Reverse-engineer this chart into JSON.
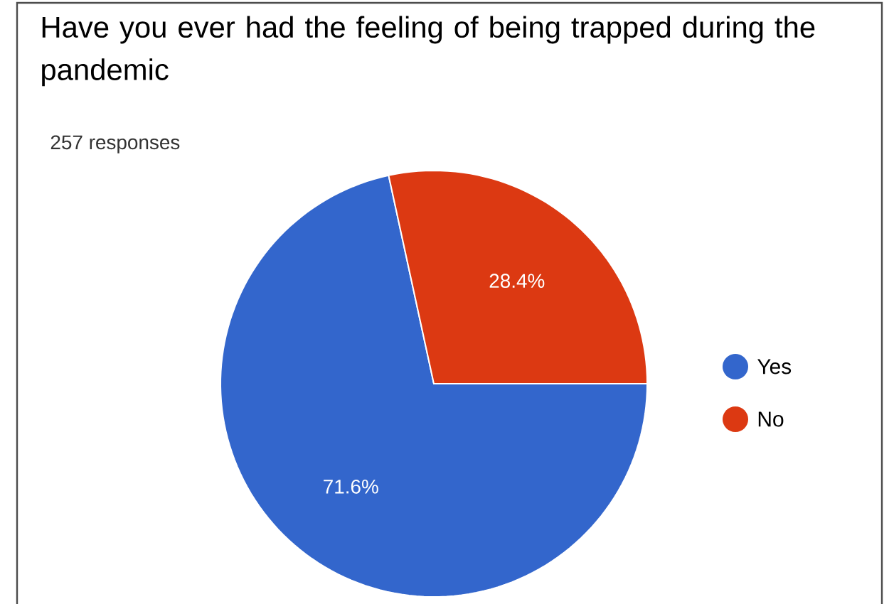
{
  "chart_data": {
    "type": "pie",
    "title": "Have you ever had the feeling of being trapped during the pandemic",
    "subtitle": "257 responses",
    "categories": [
      "Yes",
      "No"
    ],
    "values": [
      71.6,
      28.4
    ],
    "colors": [
      "#3366cc",
      "#dc3912"
    ],
    "value_labels": [
      "71.6%",
      "28.4%"
    ],
    "legend": "right"
  }
}
